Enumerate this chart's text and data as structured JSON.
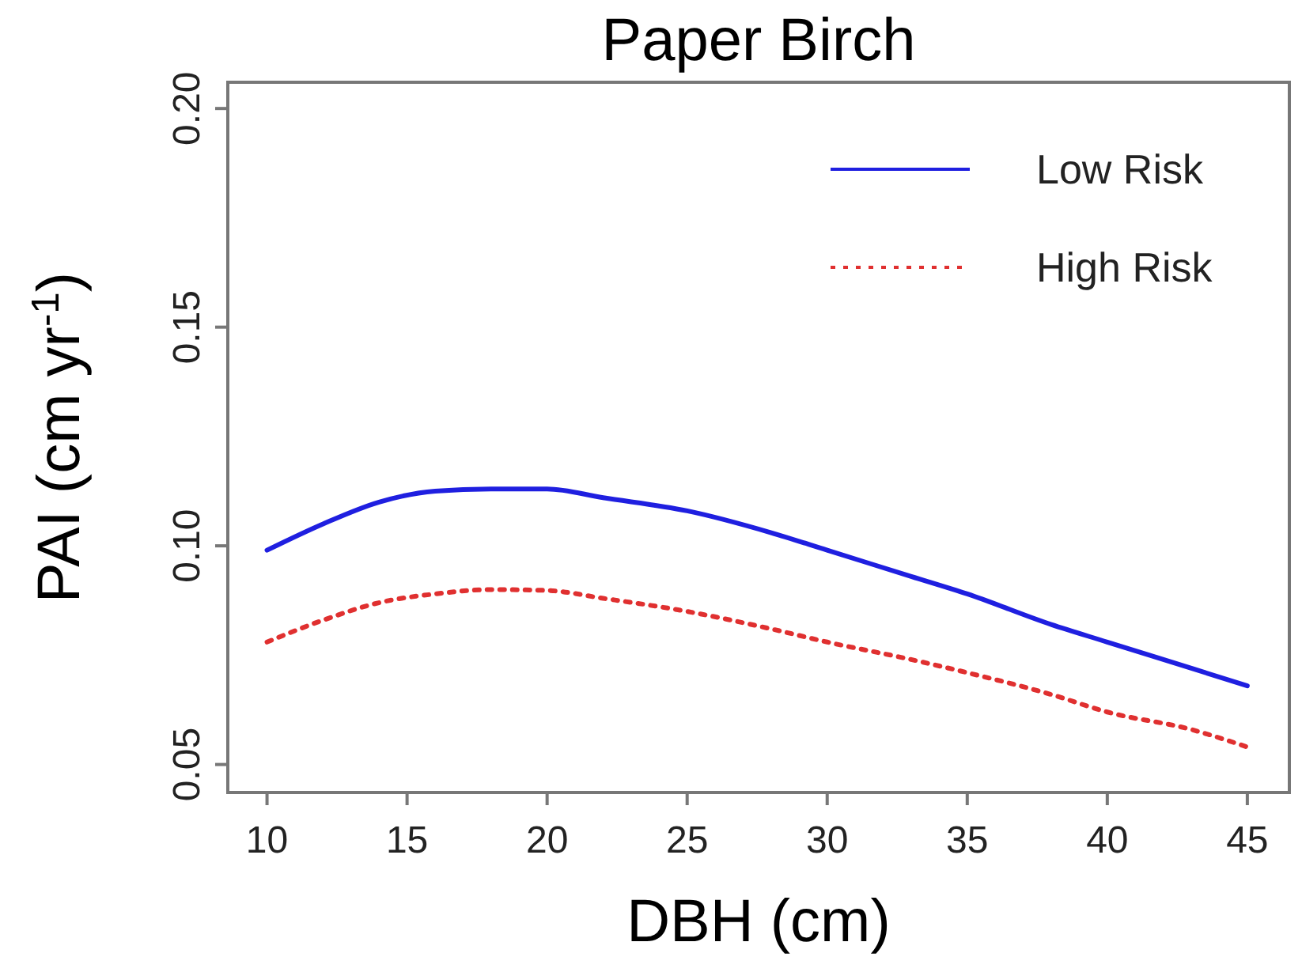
{
  "chart_data": {
    "type": "line",
    "title": "Paper Birch",
    "xlabel": "DBH (cm)",
    "ylabel": "PAI (cm yr$^{-1}$)",
    "xlim": [
      8.6,
      46.5
    ],
    "xticks": [
      10,
      15,
      20,
      25,
      30,
      35,
      40,
      45
    ],
    "ylim": [
      0.0436,
      0.206
    ],
    "yticks": [
      {
        "value": 0.05,
        "label": "0.05"
      },
      {
        "value": 0.1,
        "label": "0.10"
      },
      {
        "value": 0.15,
        "label": "0.15"
      },
      {
        "value": 0.2,
        "label": "0.20"
      }
    ],
    "x": [
      10,
      12,
      14,
      16,
      18,
      20,
      22,
      25,
      28,
      30,
      33,
      35,
      38,
      40,
      43,
      45
    ],
    "legend": "top right",
    "grid": false,
    "series": [
      {
        "name": "Low Risk",
        "color": "#1f1fe0",
        "line_style": "solid",
        "values": [
          0.099,
          0.105,
          0.11,
          0.1125,
          0.113,
          0.113,
          0.111,
          0.108,
          0.103,
          0.099,
          0.093,
          0.089,
          0.082,
          0.078,
          0.072,
          0.068
        ]
      },
      {
        "name": "High Risk",
        "color": "#e03030",
        "line_style": "dotted",
        "values": [
          0.078,
          0.083,
          0.087,
          0.089,
          0.09,
          0.0898,
          0.088,
          0.085,
          0.081,
          0.078,
          0.074,
          0.071,
          0.066,
          0.062,
          0.058,
          0.054
        ]
      }
    ]
  }
}
